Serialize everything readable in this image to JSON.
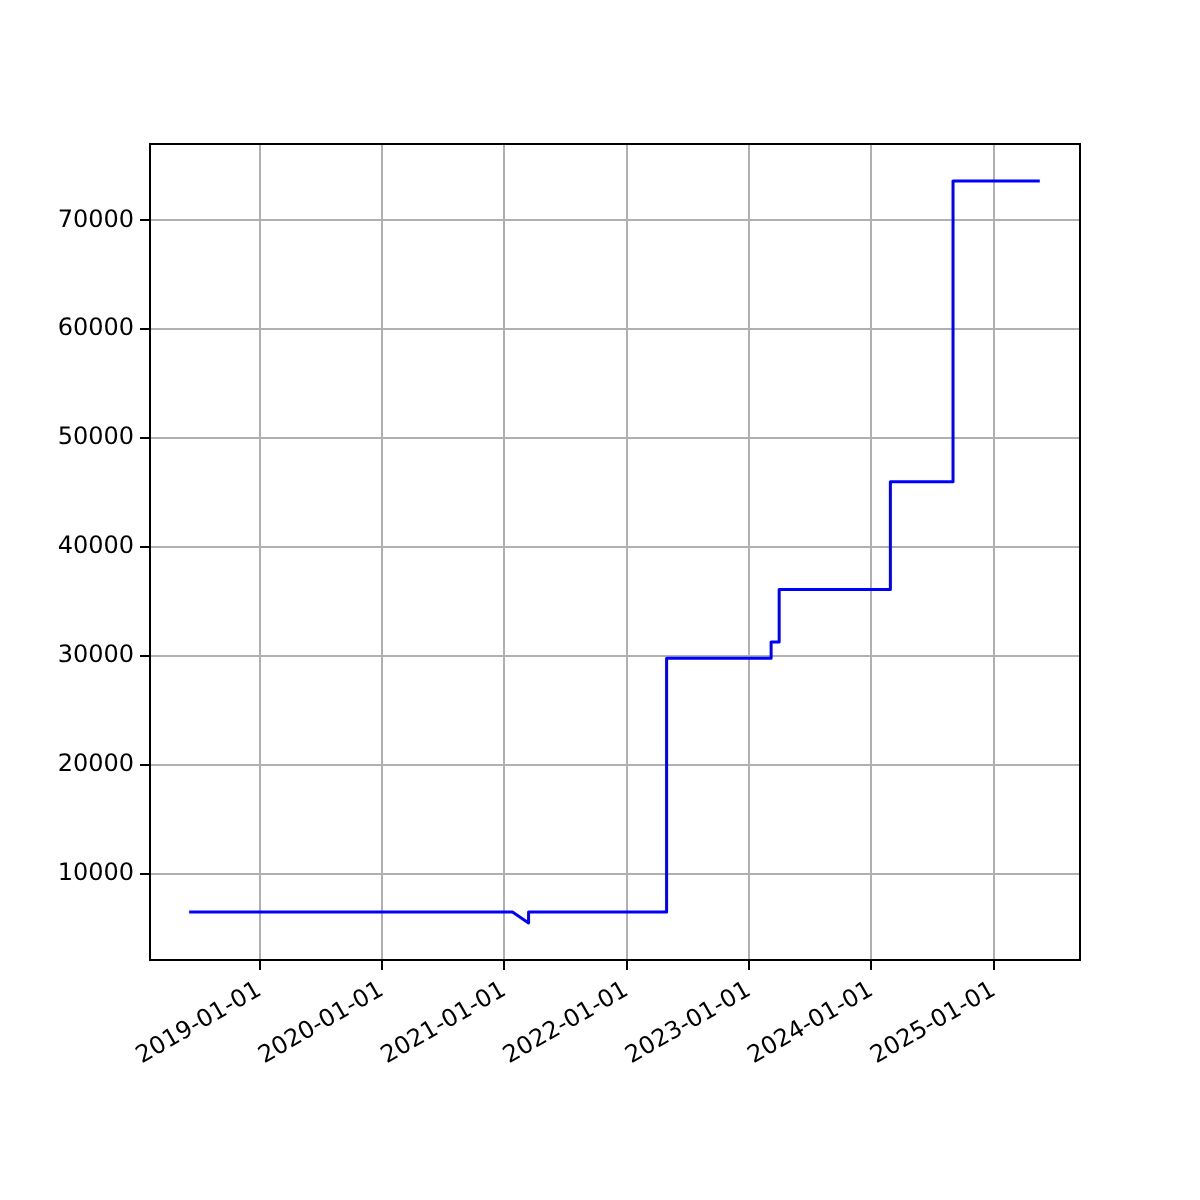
{
  "chart_data": {
    "type": "line",
    "x": [
      "2018-06-05",
      "2021-01-25",
      "2021-03-14",
      "2021-03-14",
      "2022-04-30",
      "2022-04-30",
      "2023-03-08",
      "2023-03-08",
      "2023-04-01",
      "2023-04-01",
      "2024-02-27",
      "2024-02-27",
      "2024-09-01",
      "2024-09-01",
      "2025-05-18"
    ],
    "series": [
      {
        "color": "#0000ff",
        "values": [
          6500,
          6500,
          5500,
          6500,
          6500,
          29800,
          29800,
          31300,
          31300,
          36100,
          36100,
          46000,
          46000,
          73600,
          73600
        ]
      }
    ],
    "xlim": [
      "2018-02-08",
      "2025-09-15"
    ],
    "xticks": [
      "2019-01-01",
      "2020-01-01",
      "2021-01-01",
      "2022-01-01",
      "2023-01-01",
      "2024-01-01",
      "2025-01-01"
    ],
    "ylim": [
      2100,
      77000
    ],
    "yticks": [
      10000,
      20000,
      30000,
      40000,
      50000,
      60000,
      70000
    ],
    "grid": true,
    "legend": false,
    "marker": "none",
    "line_style": "solid"
  }
}
